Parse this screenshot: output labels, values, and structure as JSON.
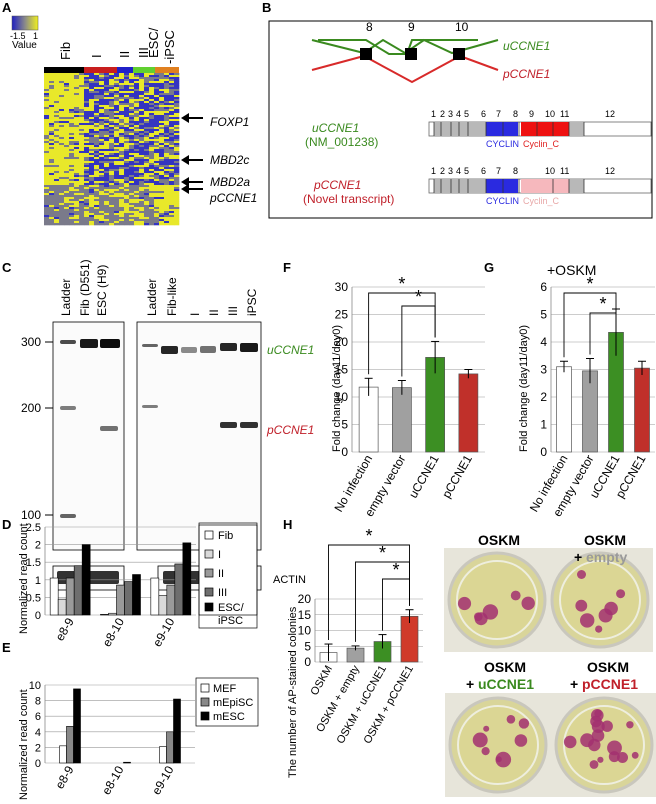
{
  "panels": {
    "A": {
      "label": "A",
      "legend": {
        "title": "Value",
        "min": "-1.5",
        "max": "1"
      },
      "columns": [
        "Fib",
        "I",
        "II",
        "III",
        "ESC/\n-iPSC"
      ],
      "col_fib": "Fib",
      "col_i": "I",
      "col_ii": "II",
      "col_iii": "III",
      "col_esc1": "ESC/",
      "col_esc2": "-iPSC",
      "colors": [
        "#000000",
        "#c81e1e",
        "#2020c8",
        "#60d030",
        "#e08020"
      ],
      "annotations": [
        "FOXP1",
        "MBD2c",
        "MBD2a",
        "pCCNE1"
      ]
    },
    "B": {
      "label": "B",
      "exons_top": [
        "8",
        "9",
        "10"
      ],
      "iso_u": "uCCNE1",
      "iso_p": "pCCNE1",
      "u_id": "(NM_001238)",
      "p_note": "(Novel transcript)",
      "exon_numbers": [
        "1",
        "2",
        "3",
        "4",
        "5",
        "6",
        "7",
        "8",
        "9",
        "10",
        "11",
        "12"
      ],
      "exon_numbers_p": [
        "1",
        "2",
        "3",
        "4",
        "5",
        "6",
        "7",
        "8",
        "10",
        "11",
        "12"
      ],
      "domain_cyclin": "CYCLIN",
      "domain_cyclin_c": "Cyclin_C"
    },
    "C": {
      "label": "C",
      "lanes_left": [
        "Ladder",
        "Fib (D551)",
        "ESC (H9)"
      ],
      "lanes_right": [
        "Ladder",
        "Fib-like",
        "I",
        "II",
        "III",
        "iPSC"
      ],
      "ladder_sizes": [
        "300",
        "200",
        "100"
      ],
      "band_u": "uCCNE1",
      "band_p": "pCCNE1",
      "actin": "ACTIN"
    },
    "D": {
      "label": "D",
      "ylabel": "Normalized read count",
      "legend": [
        "Fib",
        "I",
        "II",
        "III",
        "ESC/\niPSC"
      ],
      "legend_esc1": "ESC/",
      "legend_esc2": "iPSC"
    },
    "E": {
      "label": "E",
      "ylabel": "Normalized read count",
      "legend": [
        "MEF",
        "mEpiSC",
        "mESC"
      ]
    },
    "F": {
      "label": "F",
      "ylabel": "Fold change (day11/day0)"
    },
    "G": {
      "label": "G",
      "title": "+OSKM",
      "ylabel": "Fold change (day11/day0)"
    },
    "H": {
      "label": "H",
      "ylabel": "The number of AP-stained colonies",
      "photo_titles": [
        {
          "line1": "OSKM",
          "line2": ""
        },
        {
          "line1": "OSKM",
          "line2pre": "+ ",
          "line2": "empty"
        },
        {
          "line1": "OSKM",
          "line2pre": "+ ",
          "line2": "uCCNE1"
        },
        {
          "line1": "OSKM",
          "line2pre": "+ ",
          "line2": "pCCNE1"
        }
      ]
    }
  },
  "chart_data": [
    {
      "id": "D",
      "type": "bar",
      "categories": [
        "e8-9",
        "e8-10",
        "e9-10"
      ],
      "series": [
        {
          "name": "Fib",
          "values": [
            1.05,
            0.02,
            1.05
          ],
          "color": "#ffffff"
        },
        {
          "name": "I",
          "values": [
            0.45,
            0.05,
            0.55
          ],
          "color": "#d9d9d9"
        },
        {
          "name": "II",
          "values": [
            1.05,
            0.85,
            0.85
          ],
          "color": "#9a9a9a"
        },
        {
          "name": "III",
          "values": [
            1.4,
            0.95,
            1.45
          ],
          "color": "#6e6e6e"
        },
        {
          "name": "ESC/iPSC",
          "values": [
            2.0,
            1.15,
            2.05
          ],
          "color": "#000000"
        }
      ],
      "yticks": [
        "0",
        "0.5",
        "1",
        "1.5",
        "2",
        "2.5"
      ],
      "ylim": [
        0,
        2.5
      ]
    },
    {
      "id": "E",
      "type": "bar",
      "categories": [
        "e8-9",
        "e8-10",
        "e9-10"
      ],
      "series": [
        {
          "name": "MEF",
          "values": [
            2.2,
            0.0,
            2.1
          ],
          "color": "#ffffff"
        },
        {
          "name": "mEpiSC",
          "values": [
            4.7,
            0.0,
            4.0
          ],
          "color": "#888888"
        },
        {
          "name": "mESC",
          "values": [
            9.5,
            0.1,
            8.2
          ],
          "color": "#000000"
        }
      ],
      "yticks": [
        "0",
        "2",
        "4",
        "6",
        "8",
        "10"
      ],
      "ylim": [
        0,
        10
      ]
    },
    {
      "id": "F",
      "type": "bar",
      "categories": [
        "No infection",
        "empty vector",
        "uCCNE1",
        "pCCNE1"
      ],
      "values": [
        11.8,
        11.7,
        17.2,
        14.2
      ],
      "errors": [
        1.6,
        1.3,
        2.9,
        0.8
      ],
      "colors": [
        "#ffffff",
        "#a0a0a0",
        "#3c8f23",
        "#c0302a"
      ],
      "yticks": [
        "0",
        "5",
        "10",
        "15",
        "20",
        "25",
        "30"
      ],
      "ylim": [
        0,
        30
      ],
      "significance": [
        {
          "from": 0,
          "to": 2,
          "label": "*"
        },
        {
          "from": 1,
          "to": 2,
          "label": "*"
        }
      ]
    },
    {
      "id": "G",
      "type": "bar",
      "categories": [
        "No infection",
        "empty vector",
        "uCCNE1",
        "pCCNE1"
      ],
      "values": [
        3.1,
        2.95,
        4.35,
        3.05
      ],
      "errors": [
        0.2,
        0.45,
        0.85,
        0.25
      ],
      "colors": [
        "#ffffff",
        "#a0a0a0",
        "#3c8f23",
        "#c0302a"
      ],
      "yticks": [
        "0",
        "1",
        "2",
        "3",
        "4",
        "5",
        "6"
      ],
      "ylim": [
        0,
        6
      ],
      "significance": [
        {
          "from": 0,
          "to": 2,
          "label": "*"
        },
        {
          "from": 1,
          "to": 2,
          "label": "*"
        }
      ]
    },
    {
      "id": "H",
      "type": "bar",
      "categories": [
        "OSKM",
        "OSKM + empty",
        "OSKM + uCCNE1",
        "OSKM + pCCNE1"
      ],
      "values": [
        3.0,
        4.4,
        6.5,
        14.5
      ],
      "errors": [
        2.7,
        0.7,
        2.2,
        2.1
      ],
      "colors": [
        "#ffffff",
        "#a0a0a0",
        "#3c8f23",
        "#d03a2a"
      ],
      "yticks": [
        "0",
        "5",
        "10",
        "15",
        "20"
      ],
      "ylim": [
        0,
        20
      ],
      "significance": [
        {
          "from": 0,
          "to": 3,
          "label": "*"
        },
        {
          "from": 1,
          "to": 3,
          "label": "*"
        },
        {
          "from": 2,
          "to": 3,
          "label": "*"
        }
      ]
    }
  ]
}
